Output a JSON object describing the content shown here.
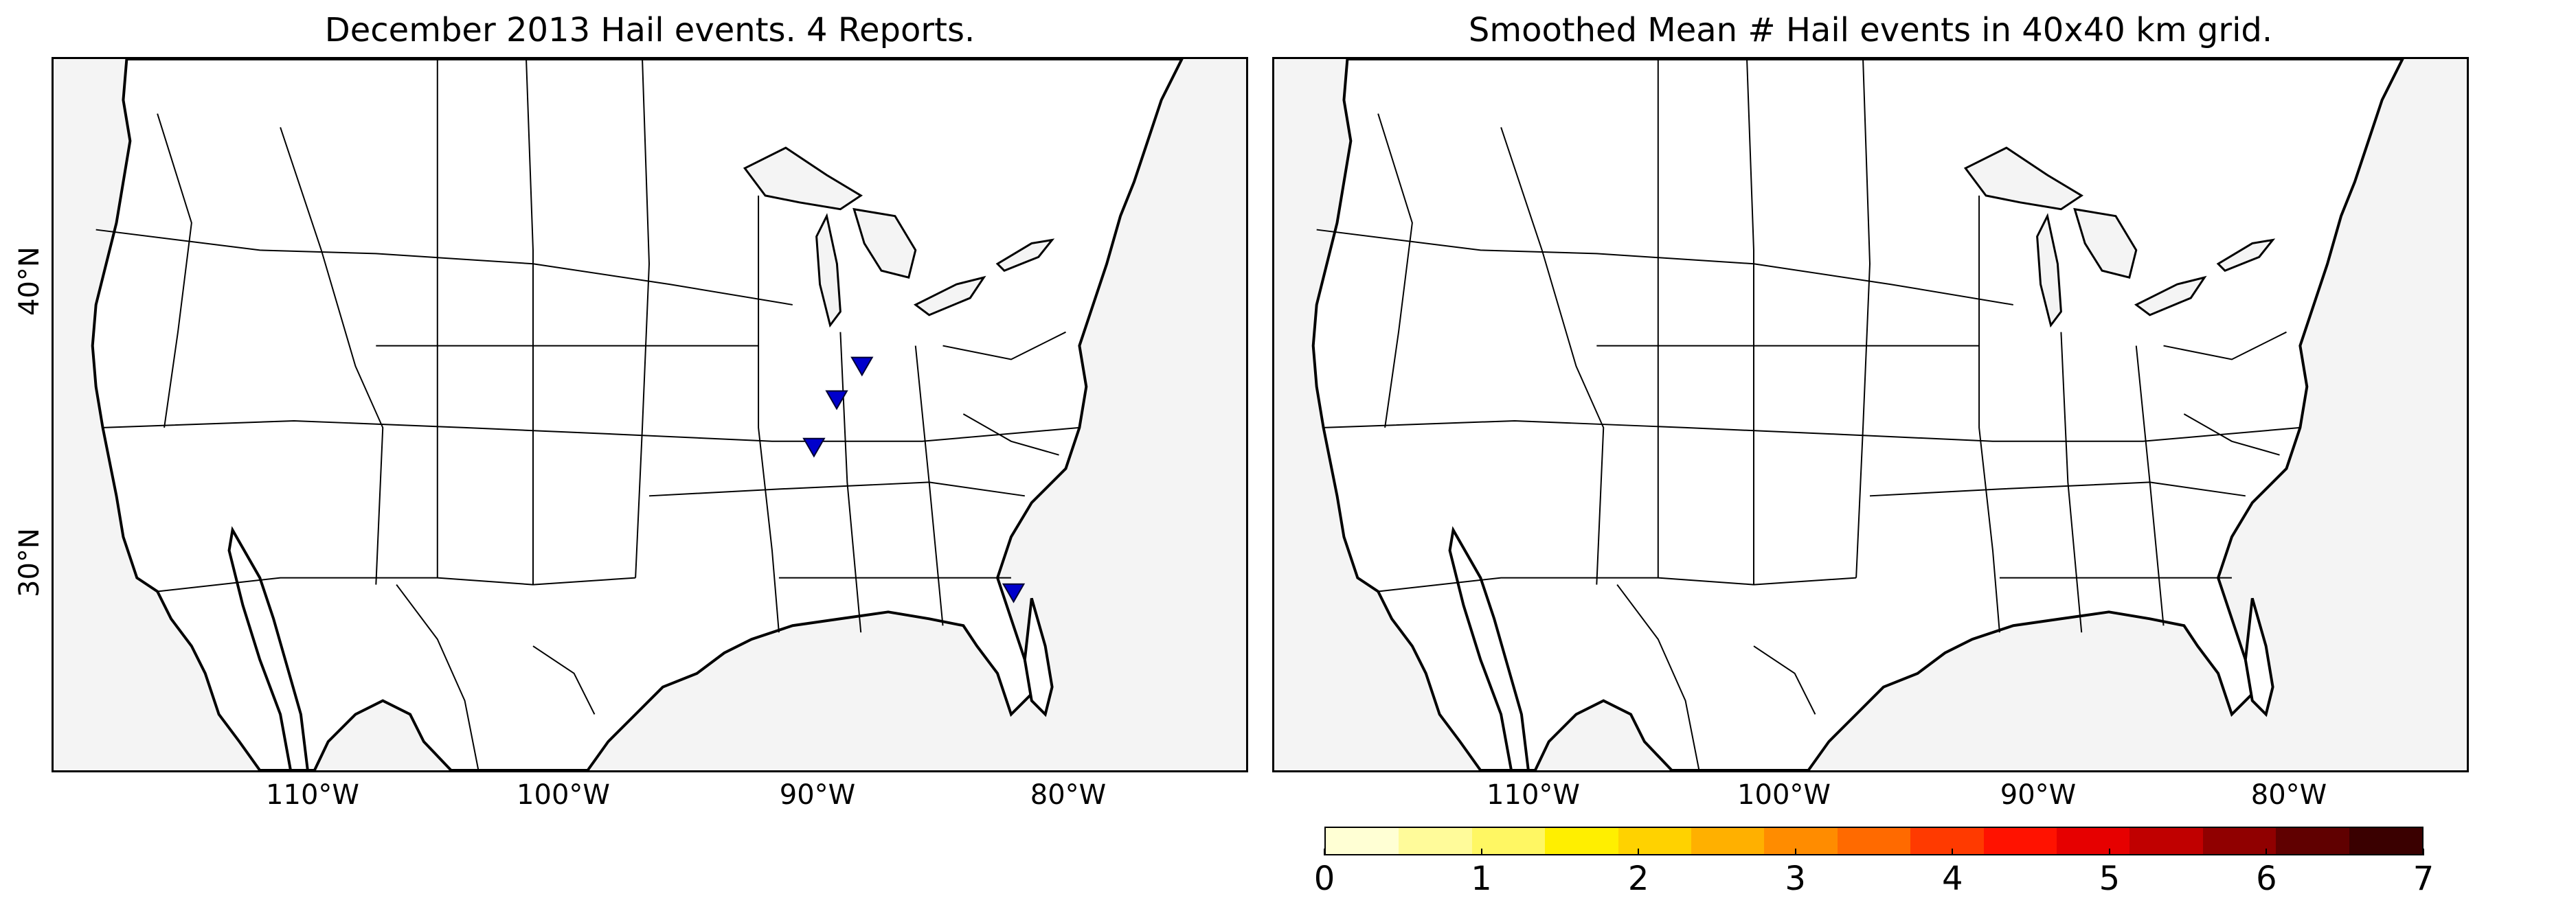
{
  "left_panel": {
    "title": "December 2013 Hail events. 4 Reports.",
    "marker_color": "#0000cc",
    "reports": [
      {
        "lon": -88.2,
        "lat": 36.9
      },
      {
        "lon": -89.2,
        "lat": 35.7
      },
      {
        "lon": -90.1,
        "lat": 34.0
      },
      {
        "lon": -82.2,
        "lat": 28.8
      }
    ]
  },
  "right_panel": {
    "title": "Smoothed Mean # Hail events in 40x40 km grid."
  },
  "axes": {
    "lon_labels": [
      "110°W",
      "100°W",
      "90°W",
      "80°W"
    ],
    "lat_labels": [
      "40°N",
      "30°N"
    ]
  },
  "colorbar": {
    "ticks": [
      "0",
      "1",
      "2",
      "3",
      "4",
      "5",
      "6",
      "7"
    ],
    "colors": [
      "#ffffd4",
      "#fffb9a",
      "#fff763",
      "#ffef00",
      "#ffd200",
      "#ffb000",
      "#ff8c00",
      "#ff6a00",
      "#ff3a00",
      "#ff1200",
      "#e60000",
      "#c00000",
      "#900000",
      "#600000",
      "#3a0000"
    ]
  },
  "map_colors": {
    "land": "#ffffff",
    "water": "#f4f4f4",
    "border": "#000000"
  }
}
